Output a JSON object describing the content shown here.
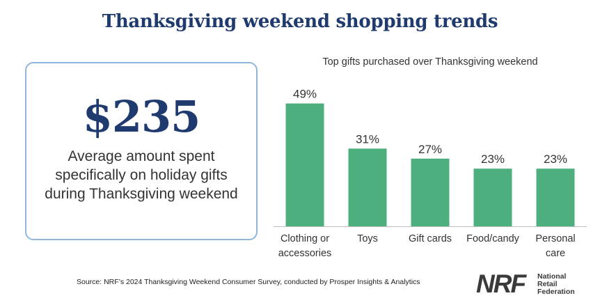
{
  "header": {
    "title": "Thanksgiving weekend shopping trends"
  },
  "stat": {
    "value": "$235",
    "description": "Average amount spent specifically on holiday gifts during Thanksgiving weekend"
  },
  "chart_data": {
    "type": "bar",
    "title": "Top gifts purchased over Thanksgiving weekend",
    "categories": [
      [
        "Clothing or",
        "accessories"
      ],
      [
        "Toys"
      ],
      [
        "Gift cards"
      ],
      [
        "Food/candy"
      ],
      [
        "Personal",
        "care"
      ]
    ],
    "values": [
      49,
      31,
      27,
      23,
      23
    ],
    "data_labels": [
      "49%",
      "31%",
      "27%",
      "23%",
      "23%"
    ],
    "unit": "%",
    "ylim": [
      0,
      50
    ],
    "bar_color": "#4caf7d",
    "xlabel": "",
    "ylabel": "",
    "grid": false
  },
  "footer": {
    "source": "Source: NRF’s 2024 Thanksgiving Weekend Consumer Survey, conducted by Prosper Insights & Analytics"
  },
  "logo": {
    "mark": "NRF",
    "lines": [
      "National",
      "Retail",
      "Federation"
    ]
  },
  "colors": {
    "navy": "#1f3a6e",
    "card_border": "#8fb6dd",
    "bar": "#4caf7d"
  }
}
